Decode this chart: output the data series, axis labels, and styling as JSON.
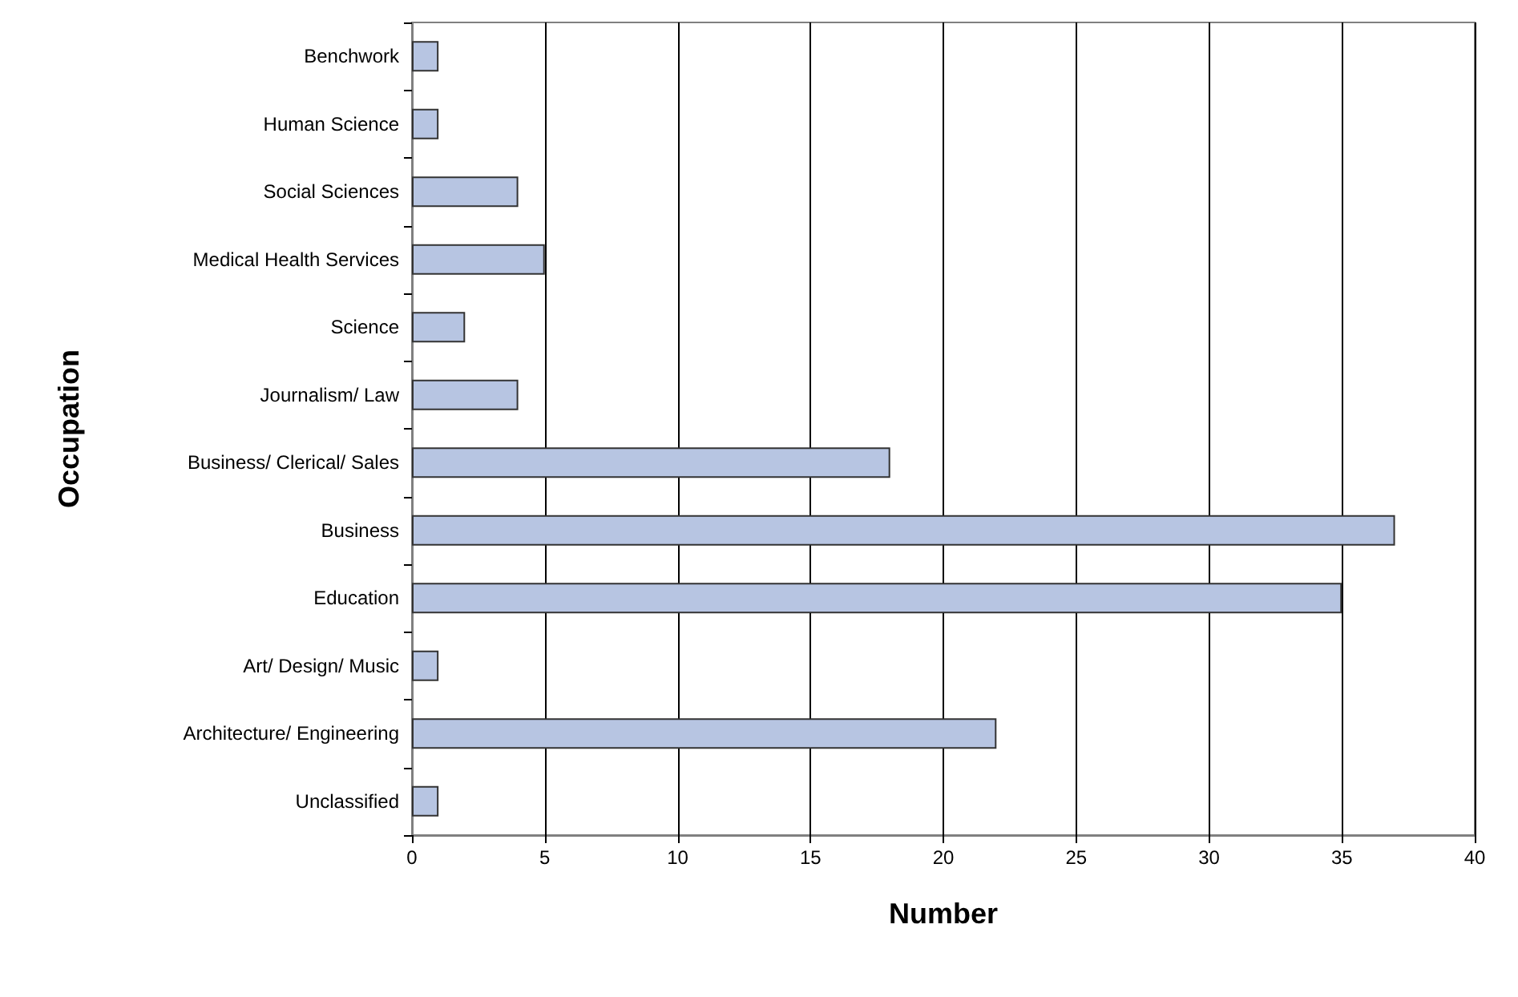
{
  "chart_data": {
    "type": "bar",
    "orientation": "horizontal",
    "xlabel": "Number",
    "ylabel": "Occupation",
    "categories": [
      "Benchwork",
      "Human Science",
      "Social Sciences",
      "Medical Health Services",
      "Science",
      "Journalism/ Law",
      "Business/ Clerical/ Sales",
      "Business",
      "Education",
      "Art/ Design/ Music",
      "Architecture/ Engineering",
      "Unclassified"
    ],
    "values": [
      1,
      1,
      4,
      5,
      2,
      4,
      18,
      37,
      35,
      1,
      22,
      1
    ],
    "color": "#b7c5e2",
    "xlim": [
      0,
      40
    ],
    "xticks": [
      0,
      5,
      10,
      15,
      20,
      25,
      30,
      35,
      40
    ],
    "grid": "x"
  }
}
